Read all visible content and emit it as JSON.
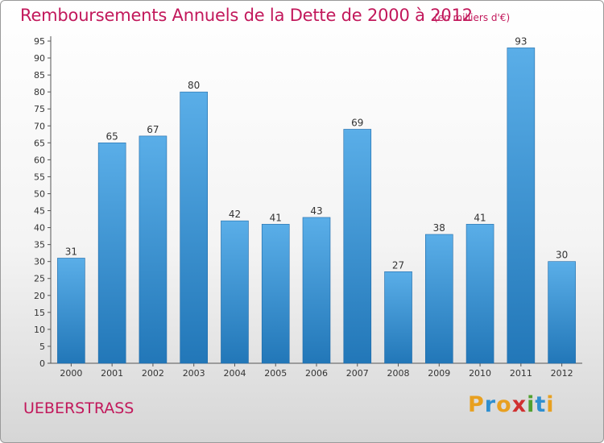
{
  "header": {
    "title": "Remboursements Annuels de la Dette de 2000 à 2012",
    "unit": "(en milliers d'€)"
  },
  "footer": {
    "commune": "UEBERSTRASS",
    "logo": "Proxiti"
  },
  "colors": {
    "bar_light": "#5aaee8",
    "bar_dark": "#2277b8",
    "title": "#c2185b",
    "logo_letters": [
      "#e8a020",
      "#2f8fd0",
      "#e8a020",
      "#d03030",
      "#50a030",
      "#2f8fd0",
      "#e8a020"
    ]
  },
  "chart_data": {
    "type": "bar",
    "title": "Remboursements Annuels de la Dette de 2000 à 2012",
    "xlabel": "",
    "ylabel": "",
    "categories": [
      "2000",
      "2001",
      "2002",
      "2003",
      "2004",
      "2005",
      "2006",
      "2007",
      "2008",
      "2009",
      "2010",
      "2011",
      "2012"
    ],
    "values": [
      31,
      65,
      67,
      80,
      42,
      41,
      43,
      69,
      27,
      38,
      41,
      93,
      30
    ],
    "ylim": [
      0,
      95
    ],
    "yticks": [
      0,
      5,
      10,
      15,
      20,
      25,
      30,
      35,
      40,
      45,
      50,
      55,
      60,
      65,
      70,
      75,
      80,
      85,
      90,
      95
    ],
    "grid": false,
    "data_labels": true
  }
}
